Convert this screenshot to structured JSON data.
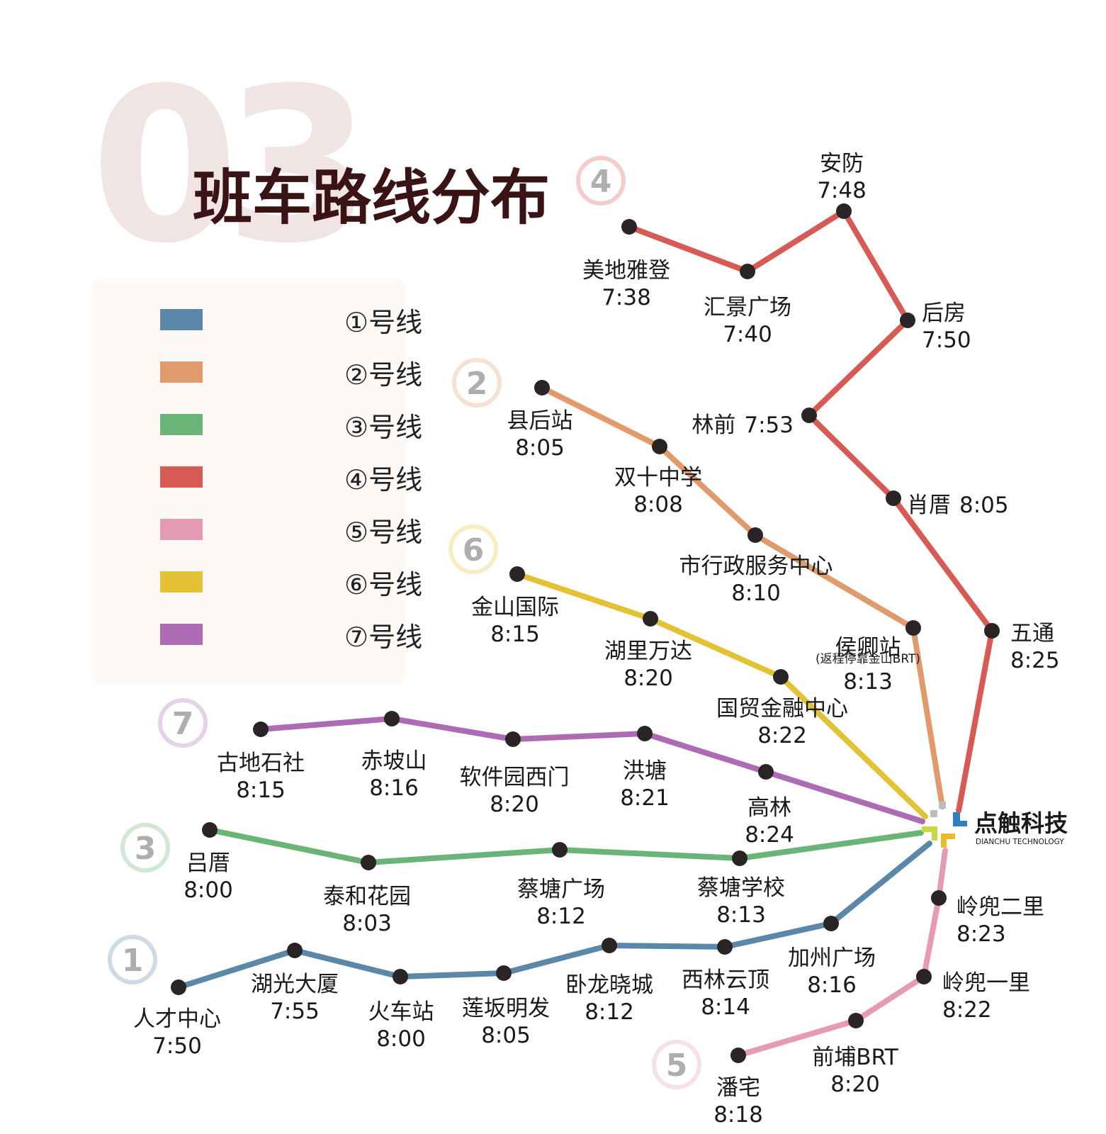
{
  "page": {
    "bg_number": "03",
    "title": "班车路线分布"
  },
  "legend": [
    {
      "label": "①号线",
      "color": "#5b87a8"
    },
    {
      "label": "②号线",
      "color": "#e09a6c"
    },
    {
      "label": "③号线",
      "color": "#6bb477"
    },
    {
      "label": "④号线",
      "color": "#d85a55"
    },
    {
      "label": "⑤号线",
      "color": "#e59bb5"
    },
    {
      "label": "⑥号线",
      "color": "#e3c236"
    },
    {
      "label": "⑦号线",
      "color": "#ad6bb3"
    }
  ],
  "hub": {
    "name": "点触科技",
    "name_en": "DIANCHU TECHNOLOGY"
  },
  "routes": [
    {
      "number": "4",
      "color": "#d85a55",
      "stops": [
        {
          "name": "美地雅登",
          "time": "7:38"
        },
        {
          "name": "汇景广场",
          "time": "7:40"
        },
        {
          "name": "安防",
          "time": "7:48"
        },
        {
          "name": "后房",
          "time": "7:50"
        },
        {
          "name": "林前",
          "time": "7:53"
        },
        {
          "name": "肖厝",
          "time": "8:05"
        },
        {
          "name": "五通",
          "time": "8:25"
        }
      ]
    },
    {
      "number": "2",
      "color": "#e09a6c",
      "stops": [
        {
          "name": "县后站",
          "time": "8:05"
        },
        {
          "name": "双十中学",
          "time": "8:08"
        },
        {
          "name": "市行政服务中心",
          "time": "8:10"
        },
        {
          "name": "侯卿站",
          "time": "8:13",
          "note": "(返程停靠金山BRT)"
        }
      ]
    },
    {
      "number": "6",
      "color": "#e3c236",
      "stops": [
        {
          "name": "金山国际",
          "time": "8:15"
        },
        {
          "name": "湖里万达",
          "time": "8:20"
        },
        {
          "name": "国贸金融中心",
          "time": "8:22"
        }
      ]
    },
    {
      "number": "7",
      "color": "#ad6bb3",
      "stops": [
        {
          "name": "古地石社",
          "time": "8:15"
        },
        {
          "name": "赤坡山",
          "time": "8:16"
        },
        {
          "name": "软件园西门",
          "time": "8:20"
        },
        {
          "name": "洪塘",
          "time": "8:21"
        },
        {
          "name": "高林",
          "time": "8:24"
        }
      ]
    },
    {
      "number": "3",
      "color": "#6bb477",
      "stops": [
        {
          "name": "吕厝",
          "time": "8:00"
        },
        {
          "name": "泰和花园",
          "time": "8:03"
        },
        {
          "name": "蔡塘广场",
          "time": "8:12"
        },
        {
          "name": "蔡塘学校",
          "time": "8:13"
        }
      ]
    },
    {
      "number": "1",
      "color": "#5b87a8",
      "stops": [
        {
          "name": "人才中心",
          "time": "7:50"
        },
        {
          "name": "湖光大厦",
          "time": "7:55"
        },
        {
          "name": "火车站",
          "time": "8:00"
        },
        {
          "name": "莲坂明发",
          "time": "8:05"
        },
        {
          "name": "卧龙晓城",
          "time": "8:12"
        },
        {
          "name": "西林云顶",
          "time": "8:14"
        },
        {
          "name": "加州广场",
          "time": "8:16"
        }
      ]
    },
    {
      "number": "5",
      "color": "#e59bb5",
      "stops": [
        {
          "name": "潘宅",
          "time": "8:18"
        },
        {
          "name": "前埔BRT",
          "time": "8:20"
        },
        {
          "name": "岭兜一里",
          "time": "8:22"
        },
        {
          "name": "岭兜二里",
          "time": "8:23"
        }
      ]
    }
  ]
}
